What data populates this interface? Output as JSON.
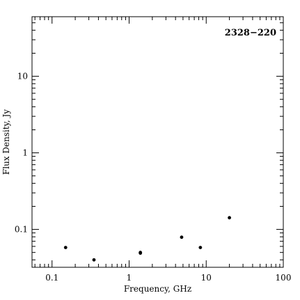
{
  "chart_data": {
    "type": "scatter",
    "title": "2328−220",
    "xlabel": "Frequency, GHz",
    "ylabel": "Flux Density, Jy",
    "xscale": "log",
    "yscale": "log",
    "xlim": [
      0.055,
      100
    ],
    "ylim": [
      0.032,
      60
    ],
    "x_ticks": [
      {
        "value": 0.1,
        "label": "0.1"
      },
      {
        "value": 1,
        "label": "1"
      },
      {
        "value": 10,
        "label": "10"
      },
      {
        "value": 100,
        "label": "100"
      }
    ],
    "y_ticks": [
      {
        "value": 0.1,
        "label": "0.1"
      },
      {
        "value": 1,
        "label": "1"
      },
      {
        "value": 10,
        "label": "10"
      }
    ],
    "grid": false,
    "series": [
      {
        "points": [
          {
            "x": 0.15,
            "y": 0.058
          },
          {
            "x": 0.35,
            "y": 0.04
          },
          {
            "x": 1.4,
            "y": 0.05
          },
          {
            "x": 1.4,
            "y": 0.049
          },
          {
            "x": 4.8,
            "y": 0.079
          },
          {
            "x": 8.4,
            "y": 0.058
          },
          {
            "x": 20,
            "y": 0.142
          }
        ]
      }
    ]
  }
}
